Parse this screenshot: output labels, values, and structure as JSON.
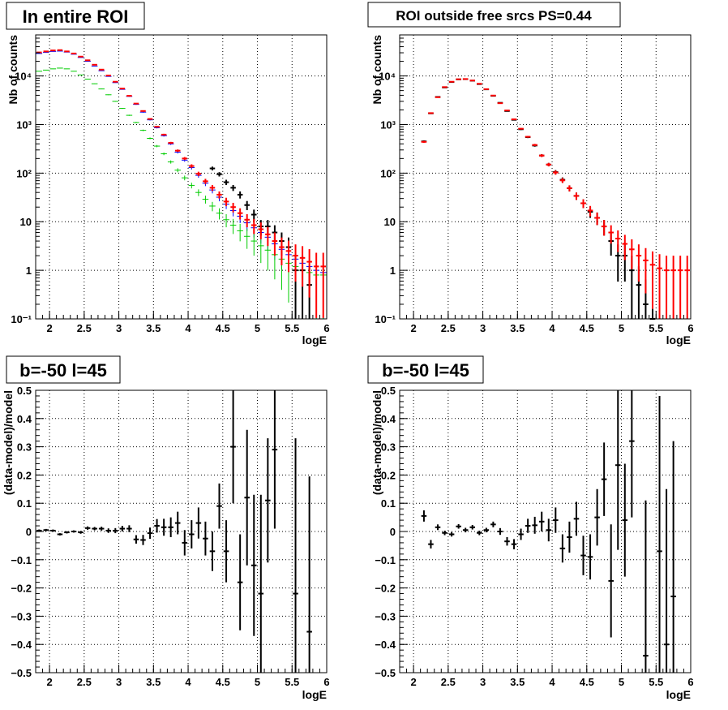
{
  "colors": {
    "data": "#000000",
    "model_red": "#ff0000",
    "model_blue": "#0000ff",
    "model_green": "#00cc00",
    "grid": "#000000"
  },
  "chart_data": [
    {
      "type": "scatter",
      "title": "In entire ROI",
      "xlabel": "logE",
      "ylabel": "Nb of counts",
      "xlim": [
        1.8,
        6.0
      ],
      "ylim": [
        0.1,
        70000
      ],
      "log_y": true,
      "grid": true,
      "xticks": [
        "2",
        "2.5",
        "3",
        "3.5",
        "4",
        "4.5",
        "5",
        "5.5",
        "6"
      ],
      "yticks": [
        "10⁻¹",
        "1",
        "10",
        "10²",
        "10³",
        "10⁴"
      ],
      "x": [
        1.85,
        1.95,
        2.05,
        2.15,
        2.25,
        2.35,
        2.45,
        2.55,
        2.65,
        2.75,
        2.85,
        2.95,
        3.05,
        3.15,
        3.25,
        3.35,
        3.45,
        3.55,
        3.65,
        3.75,
        3.85,
        3.95,
        4.05,
        4.15,
        4.25,
        4.35,
        4.45,
        4.55,
        4.65,
        4.75,
        4.85,
        4.95,
        5.05,
        5.15,
        5.25,
        5.35,
        5.45,
        5.55,
        5.65,
        5.75,
        5.85,
        5.95
      ],
      "series": [
        {
          "color": "black",
          "style": "points",
          "values": [
            null,
            null,
            null,
            null,
            null,
            null,
            null,
            null,
            null,
            null,
            null,
            null,
            null,
            null,
            null,
            null,
            null,
            null,
            null,
            null,
            null,
            null,
            null,
            null,
            null,
            125,
            95,
            65,
            50,
            36,
            22,
            14,
            8,
            8,
            6,
            4,
            3,
            1,
            1,
            0.5,
            null,
            null
          ]
        },
        {
          "color": "red",
          "style": "points",
          "values": [
            30500,
            32000,
            33500,
            34000,
            32000,
            29000,
            25000,
            21000,
            17000,
            13500,
            10200,
            7600,
            5500,
            3900,
            2700,
            1900,
            1300,
            900,
            620,
            420,
            290,
            200,
            140,
            97,
            68,
            50,
            36,
            26,
            20,
            15,
            11,
            8.5,
            7,
            5.5,
            4,
            3,
            2.5,
            2,
            1.8,
            1.5,
            1.2,
            1.2
          ]
        },
        {
          "color": "blue",
          "style": "steps",
          "values": [
            29000,
            30500,
            32000,
            32500,
            31000,
            28000,
            24000,
            20000,
            16000,
            12800,
            9800,
            7300,
            5300,
            3800,
            2600,
            1800,
            1250,
            860,
            590,
            400,
            270,
            185,
            130,
            90,
            62,
            45,
            32,
            23,
            17,
            13,
            9.5,
            7.5,
            6,
            4.8,
            3.5,
            2.7,
            2.1,
            1.7,
            1.4,
            1.2,
            1.0,
            0.9
          ]
        },
        {
          "color": "green",
          "style": "steps",
          "values": [
            12500,
            13200,
            14000,
            14500,
            14000,
            12500,
            10500,
            8600,
            6900,
            5400,
            4100,
            3000,
            2150,
            1550,
            1100,
            760,
            520,
            360,
            250,
            170,
            115,
            80,
            56,
            40,
            29,
            21,
            15,
            11,
            8.5,
            6.5,
            5,
            4,
            3.2,
            2.6,
            2.1,
            1.7,
            1.4,
            1.2,
            1.0,
            0.9,
            0.8,
            0.8
          ]
        }
      ]
    },
    {
      "type": "scatter",
      "title": "ROI outside free srcs PS=0.44",
      "xlabel": "logE",
      "ylabel": "Nb of counts",
      "xlim": [
        1.8,
        6.0
      ],
      "ylim": [
        0.1,
        70000
      ],
      "log_y": true,
      "grid": true,
      "xticks": [
        "2",
        "2.5",
        "3",
        "3.5",
        "4",
        "4.5",
        "5",
        "5.5",
        "6"
      ],
      "yticks": [
        "10⁻¹",
        "1",
        "10",
        "10²",
        "10³",
        "10⁴"
      ],
      "x": [
        2.15,
        2.25,
        2.35,
        2.45,
        2.55,
        2.65,
        2.75,
        2.85,
        2.95,
        3.05,
        3.15,
        3.25,
        3.35,
        3.45,
        3.55,
        3.65,
        3.75,
        3.85,
        3.95,
        4.05,
        4.15,
        4.25,
        4.35,
        4.45,
        4.55,
        4.65,
        4.75,
        4.85,
        4.95,
        5.05,
        5.15,
        5.25,
        5.35,
        5.45,
        5.55,
        5.65,
        5.75,
        5.85,
        5.95
      ],
      "series": [
        {
          "color": "black",
          "style": "points",
          "values": [
            450,
            1700,
            3700,
            5800,
            7500,
            8500,
            8600,
            8000,
            6800,
            5300,
            3900,
            2800,
            1900,
            1250,
            800,
            550,
            370,
            230,
            150,
            105,
            73,
            49,
            34,
            24,
            16,
            12,
            8,
            4,
            2,
            2,
            1,
            0.5,
            0.2,
            0.1,
            null,
            null,
            null,
            null,
            null
          ]
        },
        {
          "color": "red",
          "style": "points",
          "values": [
            440,
            1720,
            3650,
            5900,
            7600,
            8550,
            8650,
            8050,
            6900,
            5350,
            3950,
            2750,
            1950,
            1280,
            820,
            560,
            380,
            230,
            150,
            103,
            71,
            49,
            34,
            24,
            17,
            12,
            8,
            6,
            4.5,
            3.5,
            2.7,
            2,
            1.6,
            1.3,
            1.1,
            1,
            1,
            1,
            1
          ]
        }
      ]
    },
    {
      "type": "scatter",
      "title": "b=-50 l=45",
      "xlabel": "logE",
      "ylabel": "(data-model)/model",
      "xlim": [
        1.8,
        6.0
      ],
      "ylim": [
        -0.5,
        0.5
      ],
      "grid": true,
      "xticks": [
        "2",
        "2.5",
        "3",
        "3.5",
        "4",
        "4.5",
        "5",
        "5.5",
        "6"
      ],
      "yticks": [
        "−0.5",
        "−0.4",
        "−0.3",
        "−0.2",
        "−0.1",
        "0",
        "0.1",
        "0.2",
        "0.3",
        "0.4",
        "0.5"
      ],
      "x": [
        1.85,
        1.95,
        2.05,
        2.15,
        2.25,
        2.35,
        2.45,
        2.55,
        2.65,
        2.75,
        2.85,
        2.95,
        3.05,
        3.15,
        3.25,
        3.35,
        3.45,
        3.55,
        3.65,
        3.75,
        3.85,
        3.95,
        4.05,
        4.15,
        4.25,
        4.35,
        4.45,
        4.55,
        4.65,
        4.75,
        4.85,
        4.95,
        5.05,
        5.15,
        5.25,
        5.35,
        5.45,
        5.55,
        5.65,
        5.75,
        5.85
      ],
      "values": [
        0.003,
        0.005,
        0.003,
        -0.01,
        -0.003,
        0.0,
        -0.003,
        0.012,
        0.01,
        0.01,
        0.003,
        0.003,
        0.01,
        0.01,
        -0.028,
        -0.03,
        -0.006,
        0.02,
        0.015,
        0.015,
        0.03,
        -0.04,
        -0.01,
        0.03,
        -0.025,
        -0.07,
        0.09,
        -0.07,
        0.3,
        -0.18,
        0.12,
        -0.12,
        -0.22,
        0.11,
        0.29,
        null,
        null,
        -0.22,
        null,
        -0.355,
        null
      ],
      "errors": [
        0.004,
        0.004,
        0.004,
        0.004,
        0.004,
        0.004,
        0.005,
        0.006,
        0.006,
        0.007,
        0.008,
        0.009,
        0.01,
        0.012,
        0.015,
        0.018,
        0.02,
        0.024,
        0.03,
        0.035,
        0.04,
        0.045,
        0.05,
        0.055,
        0.06,
        0.07,
        0.08,
        0.11,
        0.2,
        0.17,
        0.24,
        0.25,
        0.35,
        0.22,
        0.28,
        null,
        null,
        0.55,
        null,
        0.55,
        null
      ]
    },
    {
      "type": "scatter",
      "title": "b=-50 l=45",
      "xlabel": "logE",
      "ylabel": "(data-model)/model",
      "xlim": [
        1.8,
        6.0
      ],
      "ylim": [
        -0.5,
        0.5
      ],
      "grid": true,
      "xticks": [
        "2",
        "2.5",
        "3",
        "3.5",
        "4",
        "4.5",
        "5",
        "5.5",
        "6"
      ],
      "yticks": [
        "−0.5",
        "−0.4",
        "−0.3",
        "−0.2",
        "−0.1",
        "0",
        "0.1",
        "0.2",
        "0.3",
        "0.4",
        "0.5"
      ],
      "x": [
        2.15,
        2.25,
        2.35,
        2.45,
        2.55,
        2.65,
        2.75,
        2.85,
        2.95,
        3.05,
        3.15,
        3.25,
        3.35,
        3.45,
        3.55,
        3.65,
        3.75,
        3.85,
        3.95,
        4.05,
        4.15,
        4.25,
        4.35,
        4.45,
        4.55,
        4.65,
        4.75,
        4.85,
        4.95,
        5.05,
        5.15,
        5.25,
        5.35,
        5.45,
        5.55,
        5.65,
        5.75,
        5.85,
        5.95
      ],
      "values": [
        0.055,
        -0.045,
        0.015,
        -0.005,
        -0.01,
        0.018,
        0.005,
        0.015,
        -0.005,
        0.005,
        0.025,
        0.0,
        -0.035,
        -0.045,
        -0.01,
        0.02,
        0.022,
        0.035,
        0.005,
        0.04,
        -0.06,
        -0.02,
        0.045,
        -0.085,
        -0.09,
        0.05,
        0.185,
        -0.175,
        0.235,
        0.04,
        0.32,
        null,
        -0.44,
        null,
        -0.07,
        -0.4,
        -0.23,
        null,
        null
      ],
      "errors": [
        0.02,
        0.015,
        0.01,
        0.008,
        0.008,
        0.008,
        0.008,
        0.008,
        0.008,
        0.008,
        0.01,
        0.012,
        0.015,
        0.018,
        0.02,
        0.025,
        0.03,
        0.035,
        0.04,
        0.045,
        0.05,
        0.055,
        0.06,
        0.07,
        0.08,
        0.1,
        0.13,
        0.2,
        0.3,
        0.2,
        0.27,
        null,
        0.55,
        null,
        0.55,
        0.55,
        0.55,
        null,
        null
      ]
    }
  ]
}
